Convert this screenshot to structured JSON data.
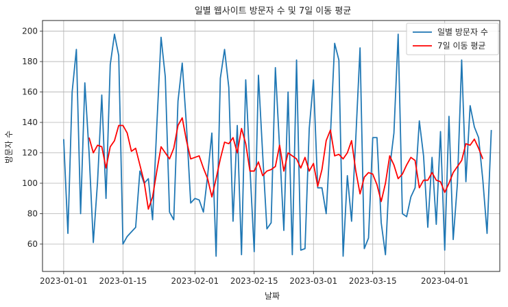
{
  "chart_data": {
    "type": "line",
    "title": "일별 웹사이트 방문자 수 및 7일 이동 평균",
    "xlabel": "날짜",
    "ylabel": "방문자 수",
    "x_start": "2023-01-01",
    "x_end": "2023-04-10",
    "xlim": [
      "2022-12-27",
      "2023-04-14"
    ],
    "ylim": [
      42,
      207
    ],
    "x_ticks": [
      "2023-01-01",
      "2023-01-15",
      "2023-02-01",
      "2023-02-15",
      "2023-03-01",
      "2023-03-15",
      "2023-04-01"
    ],
    "y_ticks": [
      60,
      80,
      100,
      120,
      140,
      160,
      180,
      200
    ],
    "grid": true,
    "legend_position": "top-right",
    "series": [
      {
        "name": "일별 방문자 수",
        "color": "#1f77b4",
        "values": [
          129,
          67,
          160,
          188,
          80,
          166,
          120,
          61,
          101,
          158,
          90,
          178,
          198,
          184,
          60,
          65,
          68,
          71,
          108,
          100,
          103,
          76,
          138,
          196,
          170,
          81,
          76,
          154,
          179,
          138,
          87,
          90,
          89,
          81,
          105,
          133,
          52,
          169,
          188,
          163,
          75,
          138,
          53,
          168,
          110,
          55,
          171,
          119,
          70,
          74,
          176,
          123,
          69,
          160,
          53,
          181,
          56,
          57,
          136,
          168,
          97,
          97,
          80,
          131,
          192,
          181,
          52,
          105,
          75,
          130,
          189,
          57,
          64,
          130,
          130,
          74,
          53,
          110,
          133,
          198,
          80,
          78,
          91,
          97,
          141,
          118,
          71,
          117,
          73,
          134,
          56,
          144,
          63,
          100,
          181,
          101,
          151,
          137,
          130,
          102,
          67,
          135
        ]
      },
      {
        "name": "7일 이동 평균",
        "color": "#ff0000",
        "start_index": 6,
        "values": [
          130,
          120,
          125,
          124,
          110,
          124,
          128,
          138,
          138,
          133,
          121,
          123,
          112,
          101,
          83,
          91,
          108,
          124,
          120,
          116,
          123,
          138,
          143,
          128,
          116,
          117,
          118,
          110,
          103,
          91,
          103,
          116,
          127,
          126,
          130,
          120,
          136,
          126,
          108,
          108,
          114,
          105,
          108,
          109,
          111,
          125,
          108,
          120,
          118,
          116,
          110,
          117,
          108,
          113,
          98,
          109,
          128,
          135,
          118,
          119,
          116,
          120,
          128,
          108,
          93,
          104,
          107,
          106,
          99,
          88,
          100,
          118,
          112,
          103,
          106,
          112,
          117,
          115,
          97,
          102,
          102,
          107,
          102,
          101,
          94,
          100,
          107,
          111,
          115,
          126,
          125,
          129,
          123,
          116
        ]
      }
    ]
  }
}
